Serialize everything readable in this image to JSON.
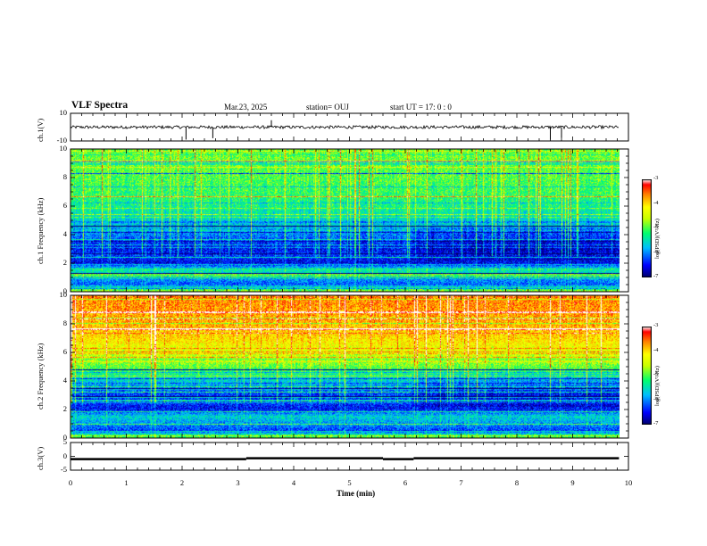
{
  "header": {
    "title": "VLF Spectra",
    "date": "Mar.23, 2025",
    "station": "station= OUJ",
    "start_ut": "start  UT =   17: 0  : 0"
  },
  "colors": {
    "waveform": "#000000",
    "colormap": [
      "#000080",
      "#0000ff",
      "#00bfff",
      "#00ff66",
      "#c8ff00",
      "#ffff00",
      "#ff8000",
      "#ff0000",
      "#ffffff"
    ]
  },
  "chart_data": [
    {
      "type": "line",
      "panel": "ch1-waveform",
      "ylabel": "ch.1(V)",
      "ylim": [
        -10,
        10
      ],
      "yticks": [
        "10",
        "-10"
      ],
      "xlim": [
        0,
        10
      ],
      "baseline": 0,
      "spikes": [
        {
          "x": 2.07,
          "y": -9
        },
        {
          "x": 2.55,
          "y": -8
        },
        {
          "x": 3.6,
          "y": 5
        },
        {
          "x": 8.6,
          "y": -9
        },
        {
          "x": 8.8,
          "y": -8
        }
      ]
    },
    {
      "type": "heatmap",
      "panel": "ch1-spectrogram",
      "ylabel": "ch.1 Frequency (kHz)",
      "ylim": [
        0,
        10
      ],
      "yticks": [
        "0",
        "2",
        "4",
        "6",
        "8",
        "10"
      ],
      "xlim": [
        0,
        9.83
      ],
      "colorbar": {
        "label": "log(PSD)(V²/Hz)",
        "range": [
          -7,
          -3
        ],
        "ticks": [
          "-3",
          "-4",
          "-5",
          "-6",
          "-7"
        ]
      },
      "profile_log_psd": [
        {
          "f": 0.1,
          "v": -5.0
        },
        {
          "f": 0.5,
          "v": -6.2
        },
        {
          "f": 1.0,
          "v": -5.8
        },
        {
          "f": 1.5,
          "v": -5.4
        },
        {
          "f": 2.0,
          "v": -6.6
        },
        {
          "f": 2.5,
          "v": -6.3
        },
        {
          "f": 3.0,
          "v": -6.5
        },
        {
          "f": 3.5,
          "v": -6.3
        },
        {
          "f": 4.0,
          "v": -6.0
        },
        {
          "f": 5.0,
          "v": -5.6
        },
        {
          "f": 6.0,
          "v": -5.3
        },
        {
          "f": 7.0,
          "v": -5.1
        },
        {
          "f": 8.0,
          "v": -5.0
        },
        {
          "f": 9.0,
          "v": -4.9
        },
        {
          "f": 10.0,
          "v": -4.9
        }
      ]
    },
    {
      "type": "heatmap",
      "panel": "ch2-spectrogram",
      "ylabel": "ch.2 Frequency (kHz)",
      "ylim": [
        0,
        10
      ],
      "yticks": [
        "0",
        "2",
        "4",
        "6",
        "8",
        "10"
      ],
      "xlim": [
        0,
        9.83
      ],
      "colorbar": {
        "label": "log(PSD)(V²/Hz)",
        "range": [
          -7,
          -3
        ],
        "ticks": [
          "-3",
          "-4",
          "-5",
          "-6",
          "-7"
        ]
      },
      "profile_log_psd": [
        {
          "f": 0.1,
          "v": -5.2
        },
        {
          "f": 0.5,
          "v": -6.3
        },
        {
          "f": 1.0,
          "v": -5.9
        },
        {
          "f": 1.5,
          "v": -5.6
        },
        {
          "f": 2.0,
          "v": -6.5
        },
        {
          "f": 2.5,
          "v": -6.3
        },
        {
          "f": 3.0,
          "v": -6.3
        },
        {
          "f": 3.5,
          "v": -6.0
        },
        {
          "f": 4.0,
          "v": -5.6
        },
        {
          "f": 5.0,
          "v": -4.9
        },
        {
          "f": 6.0,
          "v": -4.4
        },
        {
          "f": 7.0,
          "v": -4.0
        },
        {
          "f": 8.0,
          "v": -3.8
        },
        {
          "f": 9.0,
          "v": -3.7
        },
        {
          "f": 10.0,
          "v": -3.6
        }
      ]
    },
    {
      "type": "line",
      "panel": "ch3-waveform",
      "ylabel": "ch.3(V)",
      "ylim": [
        -5,
        5
      ],
      "yticks": [
        "5",
        "0",
        "-5"
      ],
      "xlim": [
        0,
        10
      ],
      "segments": [
        {
          "x0": 0,
          "x1": 3.15,
          "y": -1.0
        },
        {
          "x0": 3.15,
          "x1": 5.6,
          "y": -0.7
        },
        {
          "x0": 5.6,
          "x1": 6.15,
          "y": -1.0
        },
        {
          "x0": 6.15,
          "x1": 9.83,
          "y": -0.7
        }
      ]
    }
  ],
  "xaxis": {
    "label": "Time  (min)",
    "ticks": [
      "0",
      "1",
      "2",
      "3",
      "4",
      "5",
      "6",
      "7",
      "8",
      "9",
      "10"
    ],
    "range": [
      0,
      10
    ]
  }
}
